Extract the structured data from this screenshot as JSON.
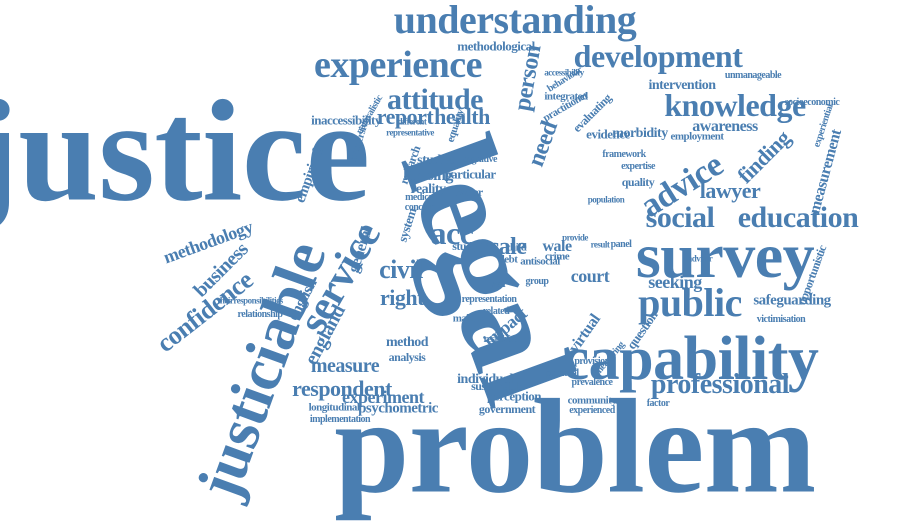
{
  "colors": {
    "word": "#4a7eb1",
    "background": "#ffffff"
  },
  "words": [
    "justice",
    "problem",
    "legal",
    "capability",
    "survey",
    "justiciable",
    "understanding",
    "experience",
    "development",
    "knowledge",
    "public",
    "social",
    "education",
    "service",
    "advice",
    "confidence",
    "attitude",
    "report",
    "health",
    "civil",
    "right",
    "need",
    "person",
    "acc",
    "scale",
    "professional",
    "lawyer",
    "finding",
    "business",
    "methodology",
    "england",
    "english",
    "respondent",
    "measure",
    "experiment",
    "psychometric",
    "empirical",
    "inaccessibility",
    "immersive",
    "housing",
    "reality",
    "court",
    "wale",
    "impact",
    "method",
    "analysis",
    "individual",
    "perception",
    "government",
    "community",
    "seeking",
    "safeguarding",
    "virtual",
    "question",
    "awareness",
    "measurement",
    "morbidity",
    "evidence",
    "intervention",
    "employment",
    "socioeconomic",
    "accessibility",
    "methodological",
    "longitudinal",
    "studies",
    "study",
    "owner",
    "general",
    "system",
    "particular",
    "equality",
    "expertise",
    "framework",
    "quality",
    "sustainable",
    "prevalence",
    "experienced",
    "victimisation",
    "opportunistic",
    "experiential",
    "medical",
    "research",
    "crime",
    "child",
    "debt",
    "related",
    "making",
    "unmanageable",
    "evaluating",
    "integrated",
    "practitioner",
    "behaviour",
    "naturalistic",
    "implementation",
    "concern",
    "relationship",
    "response",
    "potential",
    "provision",
    "measuring",
    "cognitive",
    "different",
    "representative",
    "representation",
    "factor",
    "theirresponsibilities",
    "antisocial",
    "group",
    "year",
    "panel",
    "provide",
    "result",
    "adviser",
    "population",
    "decision"
  ]
}
